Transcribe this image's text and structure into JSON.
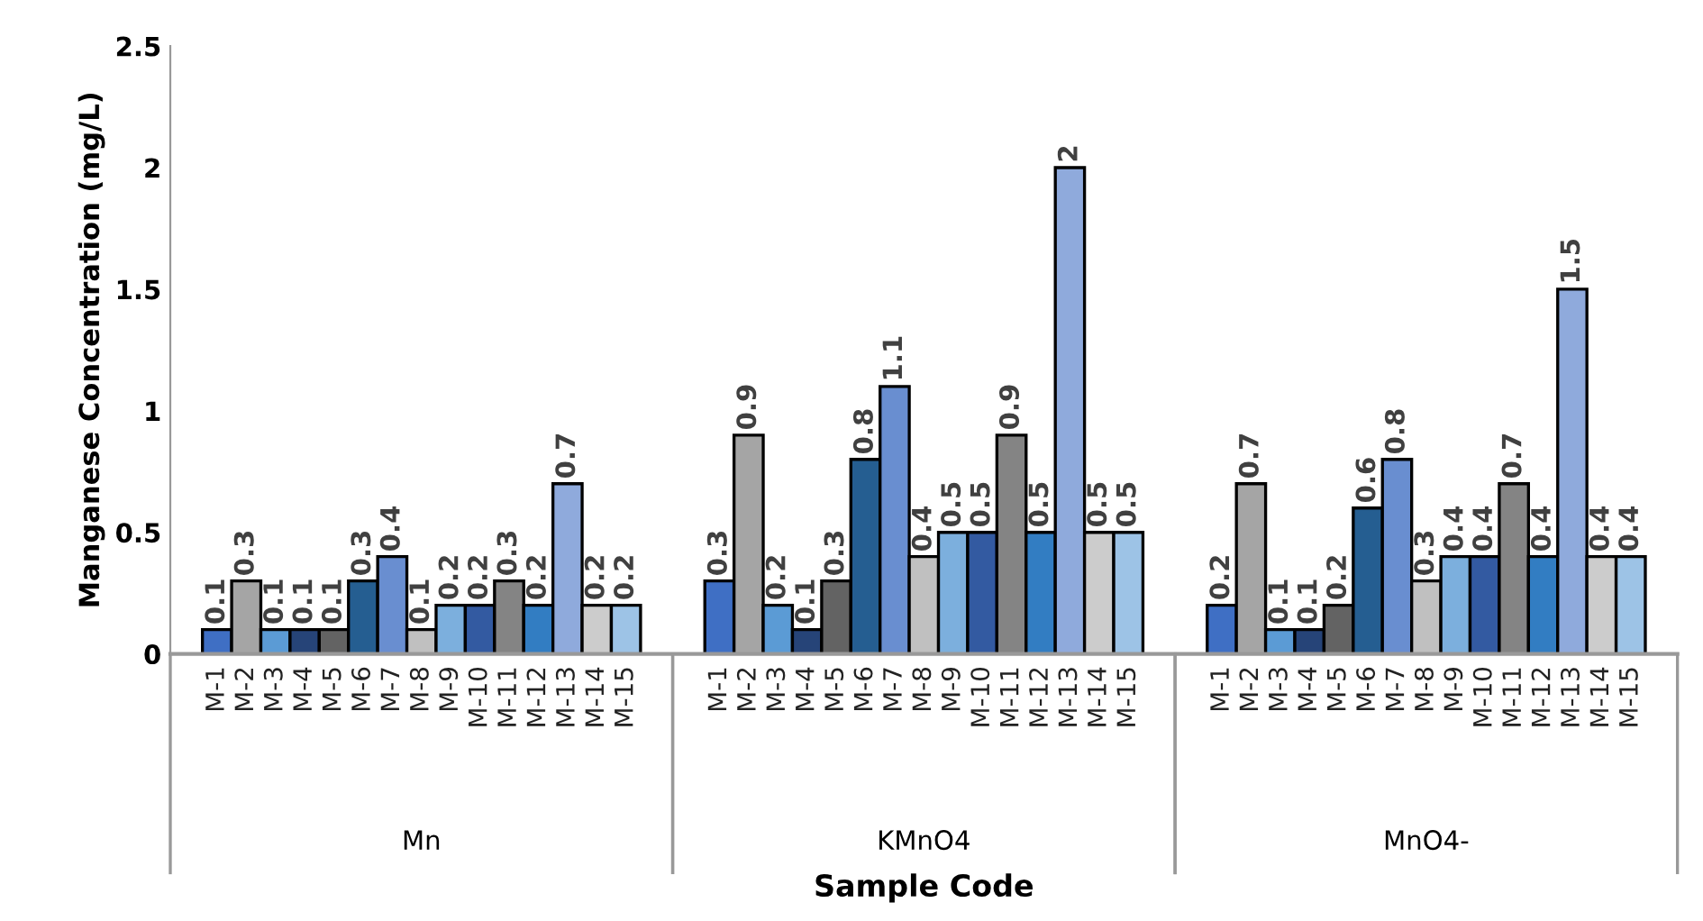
{
  "chart_data": {
    "type": "bar",
    "xlabel": "Sample Code",
    "ylabel": "Manganese Concentration (mg/L)",
    "categories": [
      "Mn",
      "KMnO4",
      "MnO4-"
    ],
    "series": [
      {
        "name": "M-1",
        "color": "#3f6fc4",
        "values": [
          0.1,
          0.3,
          0.2
        ]
      },
      {
        "name": "M-2",
        "color": "#a5a5a5",
        "values": [
          0.3,
          0.9,
          0.7
        ]
      },
      {
        "name": "M-3",
        "color": "#5b9bd5",
        "values": [
          0.1,
          0.2,
          0.1
        ]
      },
      {
        "name": "M-4",
        "color": "#264478",
        "values": [
          0.1,
          0.1,
          0.1
        ]
      },
      {
        "name": "M-5",
        "color": "#636363",
        "values": [
          0.1,
          0.3,
          0.2
        ]
      },
      {
        "name": "M-6",
        "color": "#255e91",
        "values": [
          0.3,
          0.8,
          0.6
        ]
      },
      {
        "name": "M-7",
        "color": "#698ed0",
        "values": [
          0.4,
          1.1,
          0.8
        ]
      },
      {
        "name": "M-8",
        "color": "#c0c0c0",
        "values": [
          0.1,
          0.4,
          0.3
        ]
      },
      {
        "name": "M-9",
        "color": "#7cafdd",
        "values": [
          0.2,
          0.5,
          0.4
        ]
      },
      {
        "name": "M-10",
        "color": "#335aa1",
        "values": [
          0.2,
          0.5,
          0.4
        ]
      },
      {
        "name": "M-11",
        "color": "#848484",
        "values": [
          0.3,
          0.9,
          0.7
        ]
      },
      {
        "name": "M-12",
        "color": "#327dc2",
        "values": [
          0.2,
          0.5,
          0.4
        ]
      },
      {
        "name": "M-13",
        "color": "#8faadc",
        "values": [
          0.7,
          2,
          1.5
        ]
      },
      {
        "name": "M-14",
        "color": "#cccccc",
        "values": [
          0.2,
          0.5,
          0.4
        ]
      },
      {
        "name": "M-15",
        "color": "#9dc3e6",
        "values": [
          0.2,
          0.5,
          0.4
        ]
      }
    ],
    "ylim": [
      0,
      2.5
    ],
    "yticks": [
      0,
      0.5,
      1,
      1.5,
      2,
      2.5
    ],
    "grid": false,
    "legend": false,
    "data_labels": true
  }
}
